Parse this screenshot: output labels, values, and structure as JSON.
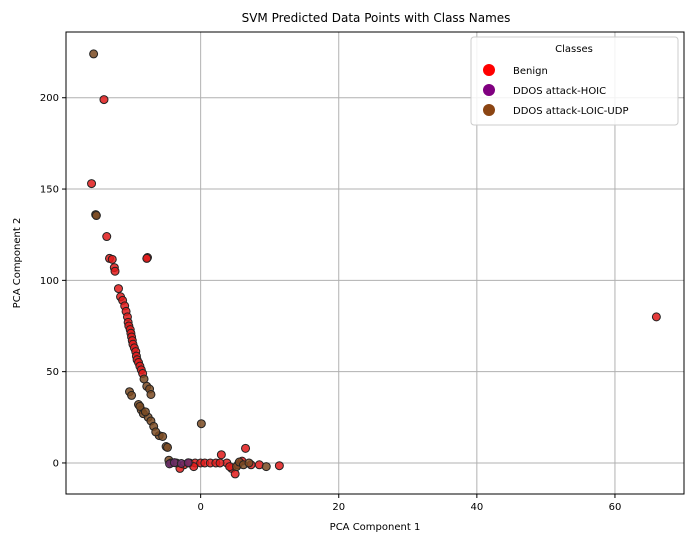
{
  "chart_data": {
    "type": "scatter",
    "title": "SVM Predicted Data Points with Class Names",
    "xlabel": "PCA Component 1",
    "ylabel": "PCA Component 2",
    "xlim": [
      -19.5,
      70
    ],
    "ylim": [
      -17,
      236
    ],
    "xticks": [
      0,
      20,
      40,
      60
    ],
    "yticks": [
      0,
      50,
      100,
      150,
      200
    ],
    "grid": true,
    "legend": {
      "title": "Classes",
      "placement": "top-right",
      "entries": [
        {
          "name": "Benign",
          "color": "#ff0000"
        },
        {
          "name": "DDOS attack-HOIC",
          "color": "#800080"
        },
        {
          "name": "DDOS attack-LOIC-UDP",
          "color": "#8b4513"
        }
      ]
    },
    "series": [
      {
        "name": "Benign",
        "color": "#e11a1a",
        "points": [
          [
            -15.8,
            153
          ],
          [
            -14,
            199
          ],
          [
            -13.6,
            124
          ],
          [
            -13.2,
            112
          ],
          [
            -12.8,
            111.5
          ],
          [
            -12.5,
            107
          ],
          [
            -12.4,
            105
          ],
          [
            -11.9,
            95.5
          ],
          [
            -11.6,
            91
          ],
          [
            -11.3,
            89
          ],
          [
            -11,
            86
          ],
          [
            -10.8,
            83
          ],
          [
            -10.6,
            80
          ],
          [
            -10.5,
            77
          ],
          [
            -10.4,
            75
          ],
          [
            -10.2,
            73
          ],
          [
            -10.1,
            71
          ],
          [
            -10,
            69
          ],
          [
            -9.9,
            67
          ],
          [
            -9.8,
            65
          ],
          [
            -9.6,
            63
          ],
          [
            -9.4,
            61
          ],
          [
            -9.3,
            58.5
          ],
          [
            -9.2,
            56.5
          ],
          [
            -9,
            55
          ],
          [
            -8.8,
            53
          ],
          [
            -8.6,
            51
          ],
          [
            -8.4,
            49
          ],
          [
            -7.7,
            112.5
          ],
          [
            -7.8,
            112
          ],
          [
            66,
            80
          ],
          [
            -2.4,
            -1
          ],
          [
            -1.6,
            0
          ],
          [
            -0.8,
            0
          ],
          [
            0,
            0
          ],
          [
            0.6,
            0
          ],
          [
            1.4,
            0
          ],
          [
            2.2,
            0
          ],
          [
            3,
            4.5
          ],
          [
            3.8,
            0
          ],
          [
            4.5,
            -3
          ],
          [
            5,
            -6
          ],
          [
            5.4,
            -1
          ],
          [
            6,
            1
          ],
          [
            6.5,
            8
          ],
          [
            7.3,
            -1
          ],
          [
            8.5,
            -1
          ],
          [
            11.4,
            -1.5
          ],
          [
            -3,
            -3
          ],
          [
            -1,
            -2
          ],
          [
            2.8,
            0
          ],
          [
            4.2,
            -2
          ]
        ]
      },
      {
        "name": "DDOS attack-LOIC-UDP",
        "color": "#7a4a22",
        "points": [
          [
            -15.5,
            224
          ],
          [
            -15.2,
            136
          ],
          [
            -15.1,
            135.5
          ],
          [
            -8.2,
            46
          ],
          [
            -7.8,
            42
          ],
          [
            -7.4,
            40.5
          ],
          [
            -7.2,
            37.5
          ],
          [
            -10.3,
            39
          ],
          [
            -10,
            37
          ],
          [
            -9,
            32
          ],
          [
            -8.6,
            29
          ],
          [
            -8.3,
            27
          ],
          [
            -7.6,
            25
          ],
          [
            -7.2,
            23
          ],
          [
            -6.8,
            20
          ],
          [
            -6,
            15
          ],
          [
            -5.5,
            14.5
          ],
          [
            -5,
            9
          ],
          [
            -4.8,
            8.5
          ],
          [
            0.1,
            21.5
          ],
          [
            -4.6,
            1.5
          ],
          [
            -4.3,
            0
          ],
          [
            -3.5,
            0
          ],
          [
            5.2,
            -2
          ],
          [
            5.6,
            0.5
          ],
          [
            6.2,
            -1
          ],
          [
            7,
            0
          ],
          [
            9.5,
            -2
          ],
          [
            -8.8,
            31
          ],
          [
            -8,
            28
          ],
          [
            -6.5,
            17
          ]
        ]
      },
      {
        "name": "DDOS attack-HOIC",
        "color": "#6a2a6a",
        "points": [
          [
            -4.5,
            -0.5
          ],
          [
            -3.8,
            0.2
          ],
          [
            -2.8,
            -0.3
          ],
          [
            -1.8,
            0.1
          ]
        ]
      }
    ]
  }
}
